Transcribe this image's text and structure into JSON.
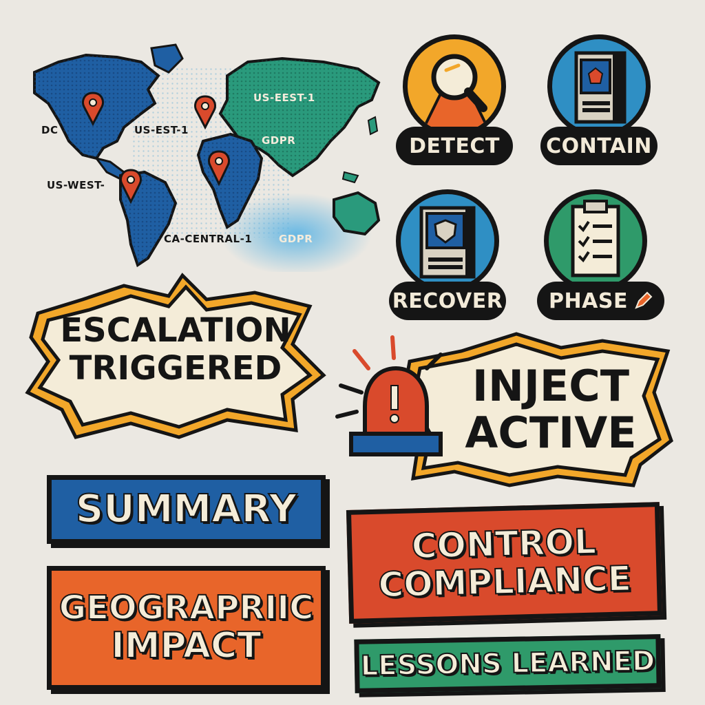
{
  "map": {
    "labels": {
      "dc": "DC",
      "us_est_1": "US-EST-1",
      "us_west": "US-WEST-",
      "ca_central_1": "CA-CENTRAL-1",
      "us_eest_1": "US-EEST-1",
      "gdpr_1": "GDPR",
      "gdpr_2": "GDPR"
    }
  },
  "phases": {
    "detect": "DETECT",
    "contain": "CONTAIN",
    "recover": "RECOVER",
    "phase": "PHASE"
  },
  "escalation": {
    "line1": "ESCALATION",
    "line2": "TRIGGERED"
  },
  "inject": {
    "line1": "INJECT",
    "line2": "ACTIVE"
  },
  "summary": "SUMMARY",
  "geographic": {
    "line1": "GEOGRAPRIIC",
    "line2": "IMPACT"
  },
  "control": {
    "line1": "CONTROL",
    "line2": "COMPLIANCE"
  },
  "lessons": "LESSONS LEARNED",
  "colors": {
    "blue": "#1f5fa3",
    "teal": "#2a9a7c",
    "orange": "#e8652a",
    "red": "#d94a2c",
    "yellow": "#f2a72a",
    "green": "#2f9a6a",
    "cream": "#f4ecd8",
    "ink": "#151515"
  }
}
